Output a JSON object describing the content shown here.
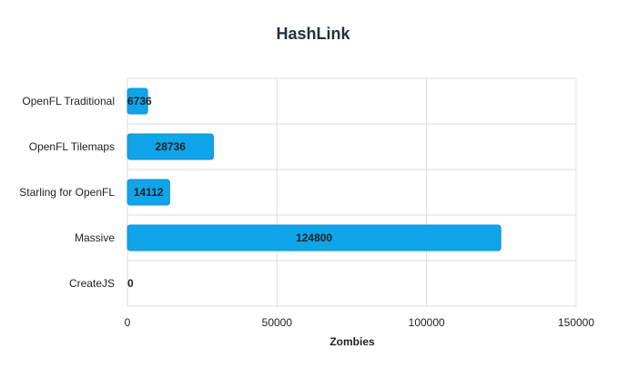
{
  "chart_data": {
    "type": "bar",
    "orientation": "horizontal",
    "title": "HashLink",
    "xlabel": "Zombies",
    "ylabel": "",
    "categories": [
      "OpenFL Traditional",
      "OpenFL Tilemaps",
      "Starling for OpenFL",
      "Massive",
      "CreateJS"
    ],
    "values": [
      6736,
      28736,
      14112,
      124800,
      0
    ],
    "xlim": [
      0,
      150000
    ],
    "xticks": [
      0,
      50000,
      100000,
      150000
    ],
    "grid": true,
    "legend": "none",
    "bar_color": "#10a4e8",
    "data_labels": true
  }
}
